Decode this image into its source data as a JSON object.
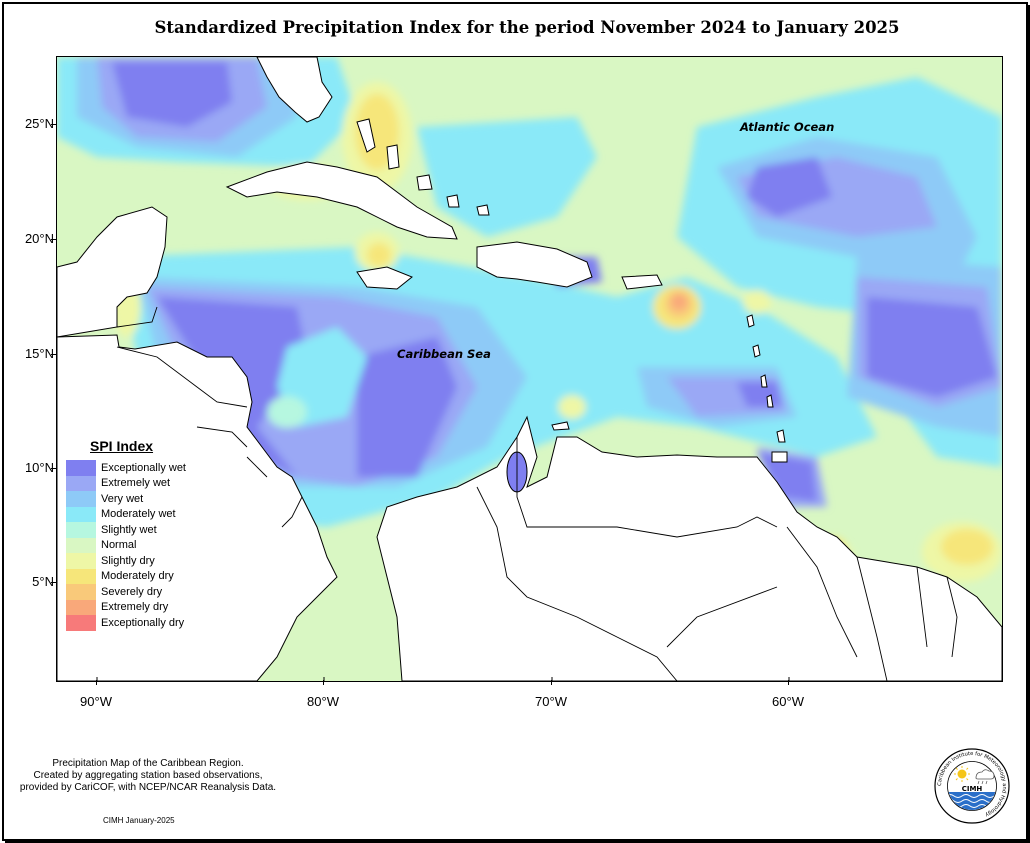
{
  "title": "Standardized Precipitation Index for the period November 2024 to January 2025",
  "axes": {
    "lat_labels": [
      "25°N",
      "20°N",
      "15°N",
      "10°N",
      "5°N"
    ],
    "lon_labels": [
      "90°W",
      "80°W",
      "70°W",
      "60°W"
    ]
  },
  "map_labels": {
    "atlantic": "Atlantic Ocean",
    "caribbean": "Caribbean Sea"
  },
  "legend": {
    "title": "SPI Index",
    "items": [
      {
        "label": "Exceptionally wet",
        "color": "#7f7ff0"
      },
      {
        "label": "Extremely wet",
        "color": "#9aa8f5"
      },
      {
        "label": "Very wet",
        "color": "#8ecaf7"
      },
      {
        "label": "Moderately wet",
        "color": "#8ae9f8"
      },
      {
        "label": "Slightly wet",
        "color": "#b6f7e0"
      },
      {
        "label": "Normal",
        "color": "#d9f7c3"
      },
      {
        "label": "Slightly dry",
        "color": "#eef7a6"
      },
      {
        "label": "Moderately dry",
        "color": "#f6e67a"
      },
      {
        "label": "Severely dry",
        "color": "#f9c97a"
      },
      {
        "label": "Extremely dry",
        "color": "#f9a87a"
      },
      {
        "label": "Exceptionally dry",
        "color": "#f77a7a"
      }
    ]
  },
  "credits": {
    "lines": [
      "Precipitation Map of the Caribbean Region.",
      "Created by aggregating station based observations,",
      "provided by CariCOF, with NCEP/NCAR Reanalysis Data."
    ],
    "date": "CIMH January-2025"
  },
  "logo": {
    "name": "CIMH",
    "ring_text": "Caribbean Institute for Meteorology and Hydrology"
  }
}
